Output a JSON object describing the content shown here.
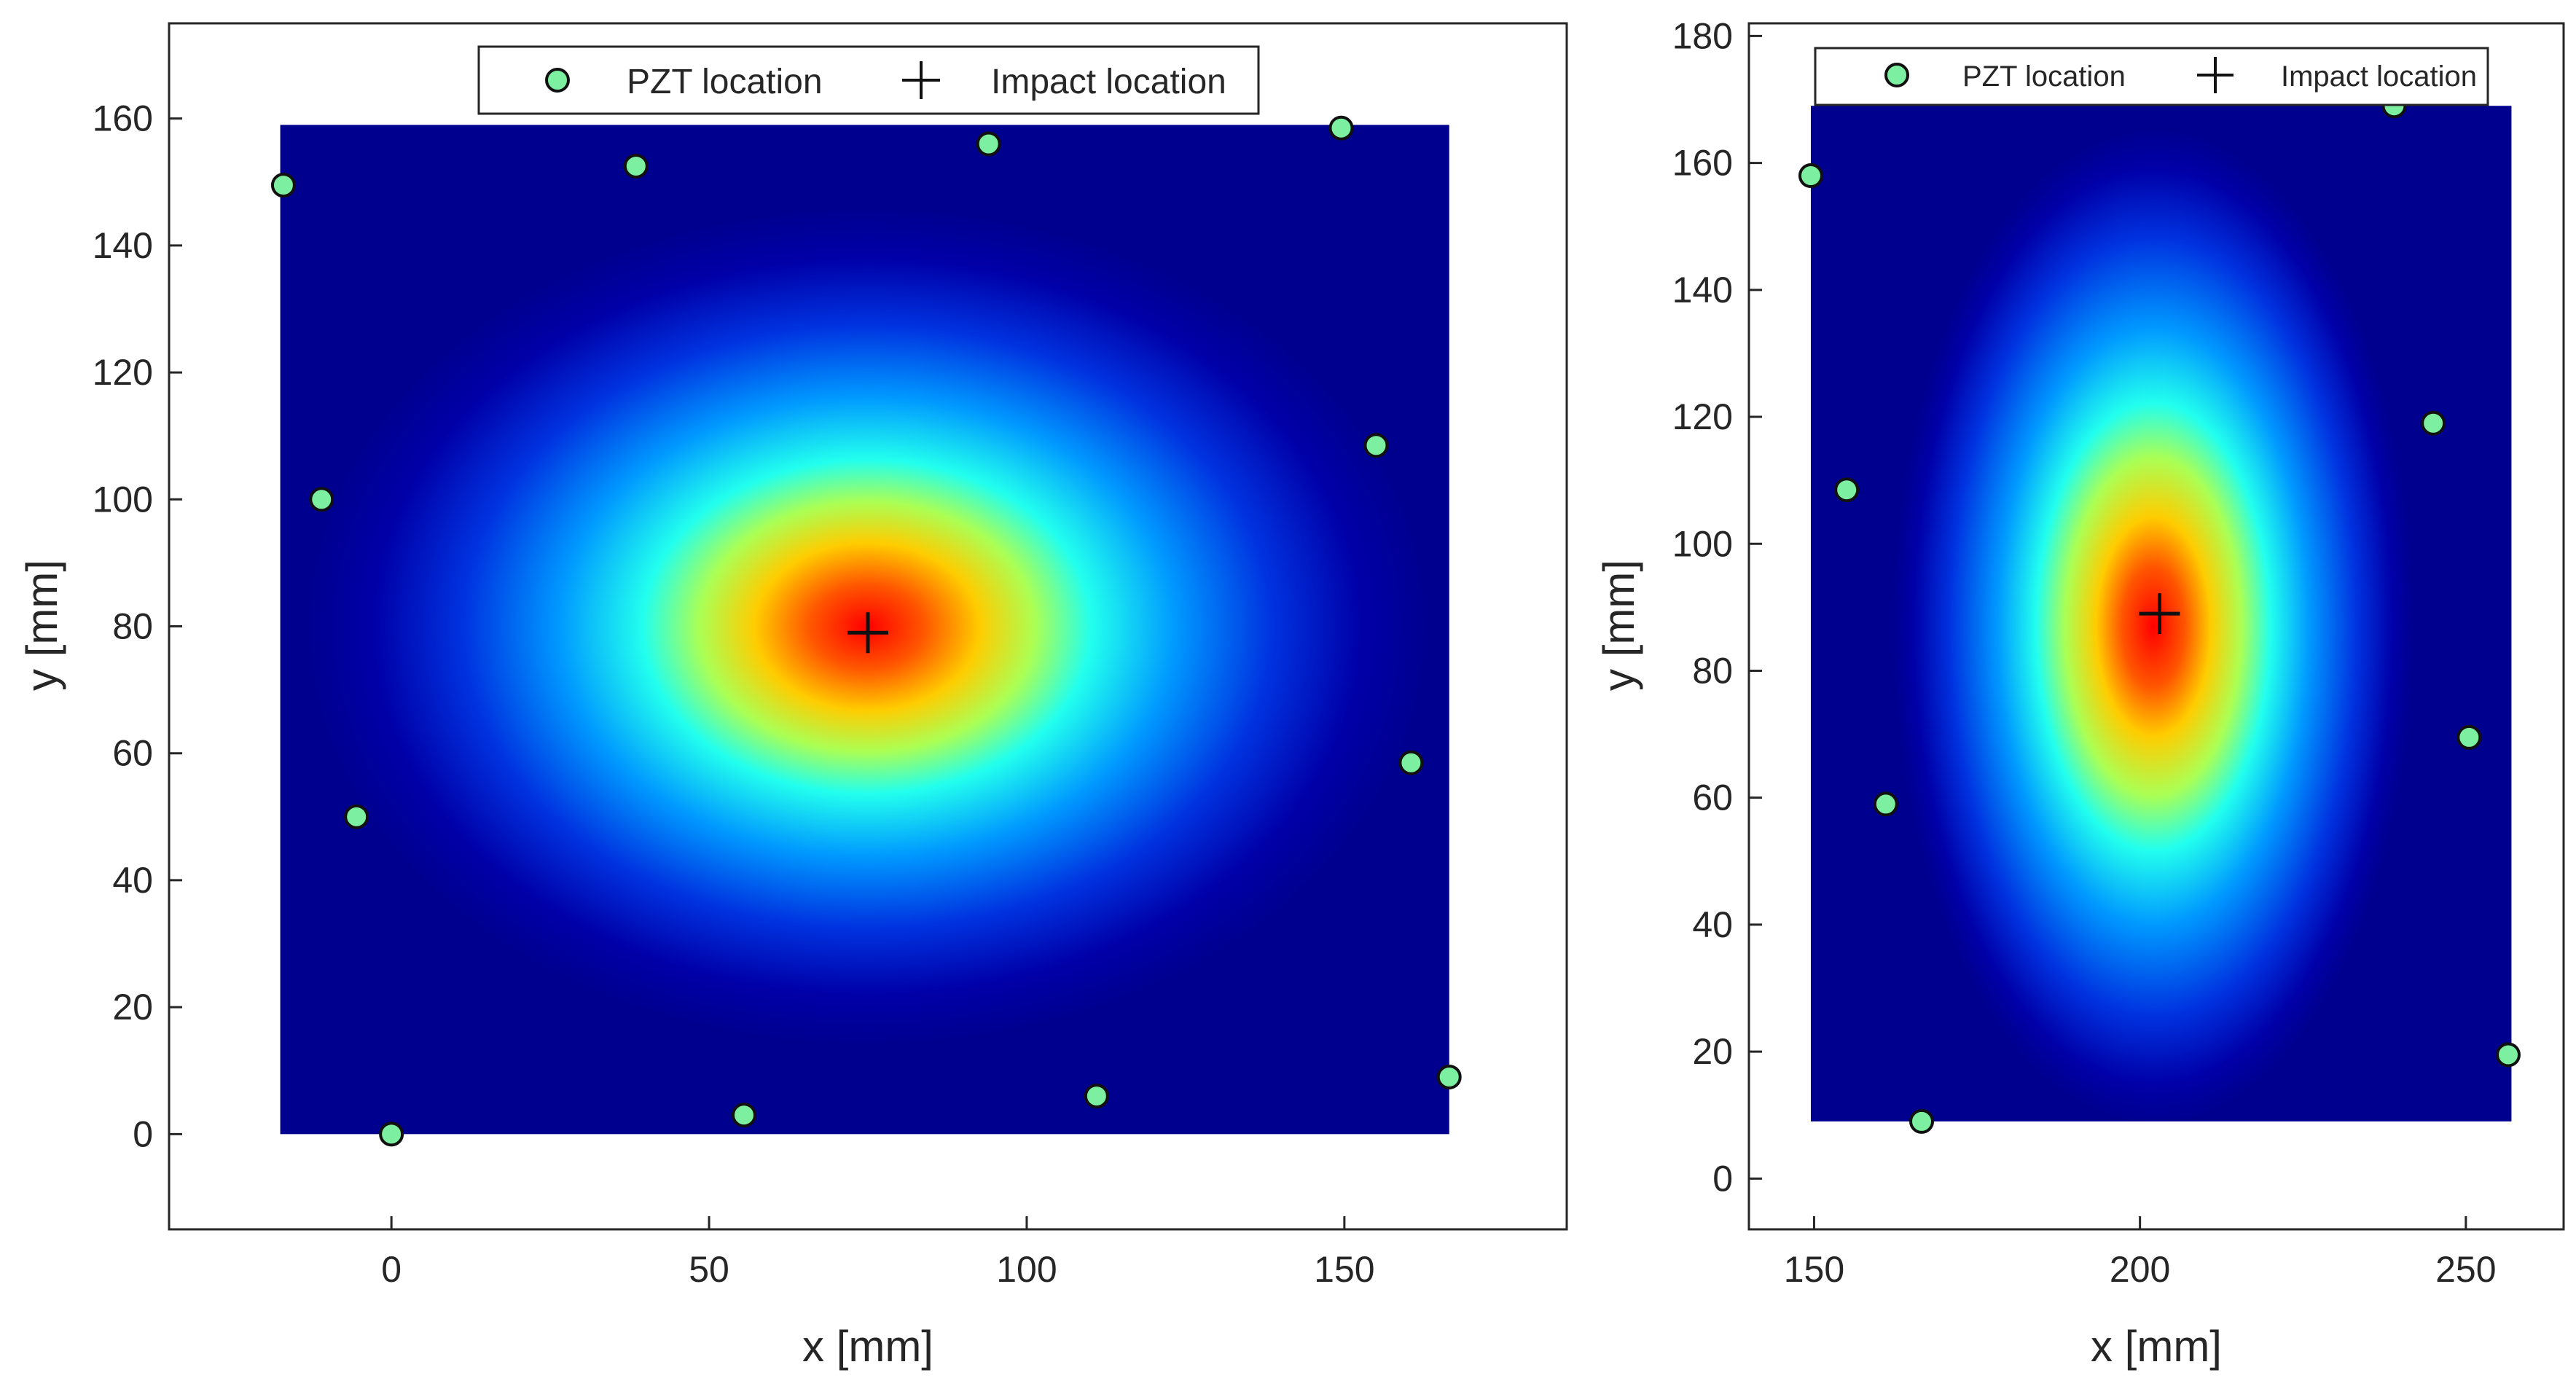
{
  "chart_data": [
    {
      "type": "heatmap",
      "name": "left",
      "xlabel": "x [mm]",
      "ylabel": "y [mm]",
      "xlim": [
        -35,
        185
      ],
      "ylim": [
        -15,
        175
      ],
      "xticks": [
        0,
        50,
        100,
        150
      ],
      "yticks": [
        0,
        20,
        40,
        60,
        80,
        100,
        120,
        140,
        160
      ],
      "grid": false,
      "colormap": "jet",
      "heat_extent": {
        "x": [
          -17.5,
          166.5
        ],
        "y": [
          0,
          159
        ]
      },
      "impact": {
        "x": 75,
        "y": 79
      },
      "pzt": [
        {
          "x": -17,
          "y": 149.5
        },
        {
          "x": 38.5,
          "y": 152.5
        },
        {
          "x": 94,
          "y": 156
        },
        {
          "x": 149.5,
          "y": 158.5
        },
        {
          "x": -11,
          "y": 100
        },
        {
          "x": 155,
          "y": 108.5
        },
        {
          "x": -5.5,
          "y": 50
        },
        {
          "x": 160.5,
          "y": 58.5
        },
        {
          "x": 0,
          "y": 0
        },
        {
          "x": 55.5,
          "y": 3
        },
        {
          "x": 111,
          "y": 6
        },
        {
          "x": 166.5,
          "y": 9
        }
      ],
      "legend": {
        "position": "top-center",
        "entries": [
          "PZT location",
          "Impact location"
        ]
      }
    },
    {
      "type": "heatmap",
      "name": "right",
      "xlabel": "x [mm]",
      "ylabel": "y [mm]",
      "xlim": [
        140,
        265
      ],
      "ylim": [
        -8,
        182
      ],
      "xticks": [
        150,
        200,
        250
      ],
      "yticks": [
        0,
        20,
        40,
        60,
        80,
        100,
        120,
        140,
        160,
        180
      ],
      "grid": false,
      "colormap": "jet",
      "heat_extent": {
        "x": [
          149.5,
          257
        ],
        "y": [
          9,
          169
        ]
      },
      "impact": {
        "x": 203,
        "y": 89
      },
      "pzt": [
        {
          "x": 149.5,
          "y": 158
        },
        {
          "x": 239,
          "y": 169
        },
        {
          "x": 155,
          "y": 108.5
        },
        {
          "x": 245,
          "y": 119
        },
        {
          "x": 161,
          "y": 59
        },
        {
          "x": 250.5,
          "y": 69.5
        },
        {
          "x": 166.5,
          "y": 9
        },
        {
          "x": 256.5,
          "y": 19.5
        }
      ],
      "legend": {
        "position": "top-center",
        "entries": [
          "PZT location",
          "Impact location"
        ]
      }
    }
  ]
}
